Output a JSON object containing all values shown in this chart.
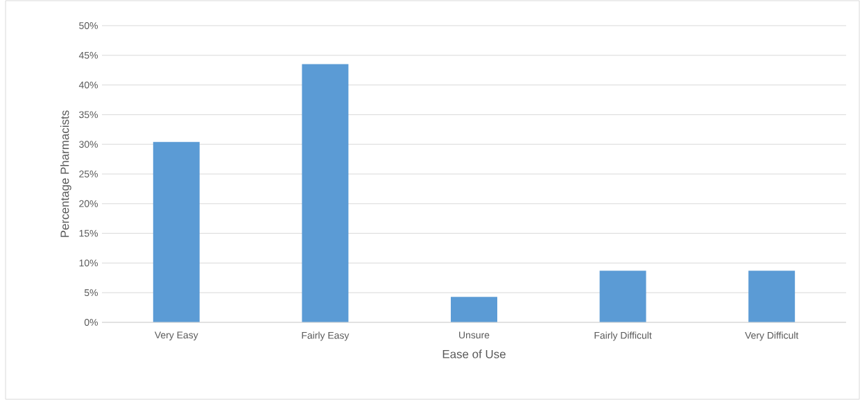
{
  "chart_data": {
    "type": "bar",
    "xlabel": "Ease of Use",
    "ylabel": "Percentage Pharmacists",
    "categories": [
      "Very Easy",
      "Fairly Easy",
      "Unsure",
      "Fairly Difficult",
      "Very Difficult"
    ],
    "values": [
      30.4,
      43.5,
      4.3,
      8.7,
      8.7
    ],
    "color": "#5b9bd5",
    "ylim": [
      0,
      50
    ],
    "yticks": [
      {
        "value": 0,
        "label": "0%"
      },
      {
        "value": 5,
        "label": "5%"
      },
      {
        "value": 10,
        "label": "10%"
      },
      {
        "value": 15,
        "label": "15%"
      },
      {
        "value": 20,
        "label": "20%"
      },
      {
        "value": 25,
        "label": "25%"
      },
      {
        "value": 30,
        "label": "30%"
      },
      {
        "value": 35,
        "label": "35%"
      },
      {
        "value": 40,
        "label": "40%"
      },
      {
        "value": 45,
        "label": "45%"
      },
      {
        "value": 50,
        "label": "50%"
      }
    ],
    "grid": "y"
  }
}
